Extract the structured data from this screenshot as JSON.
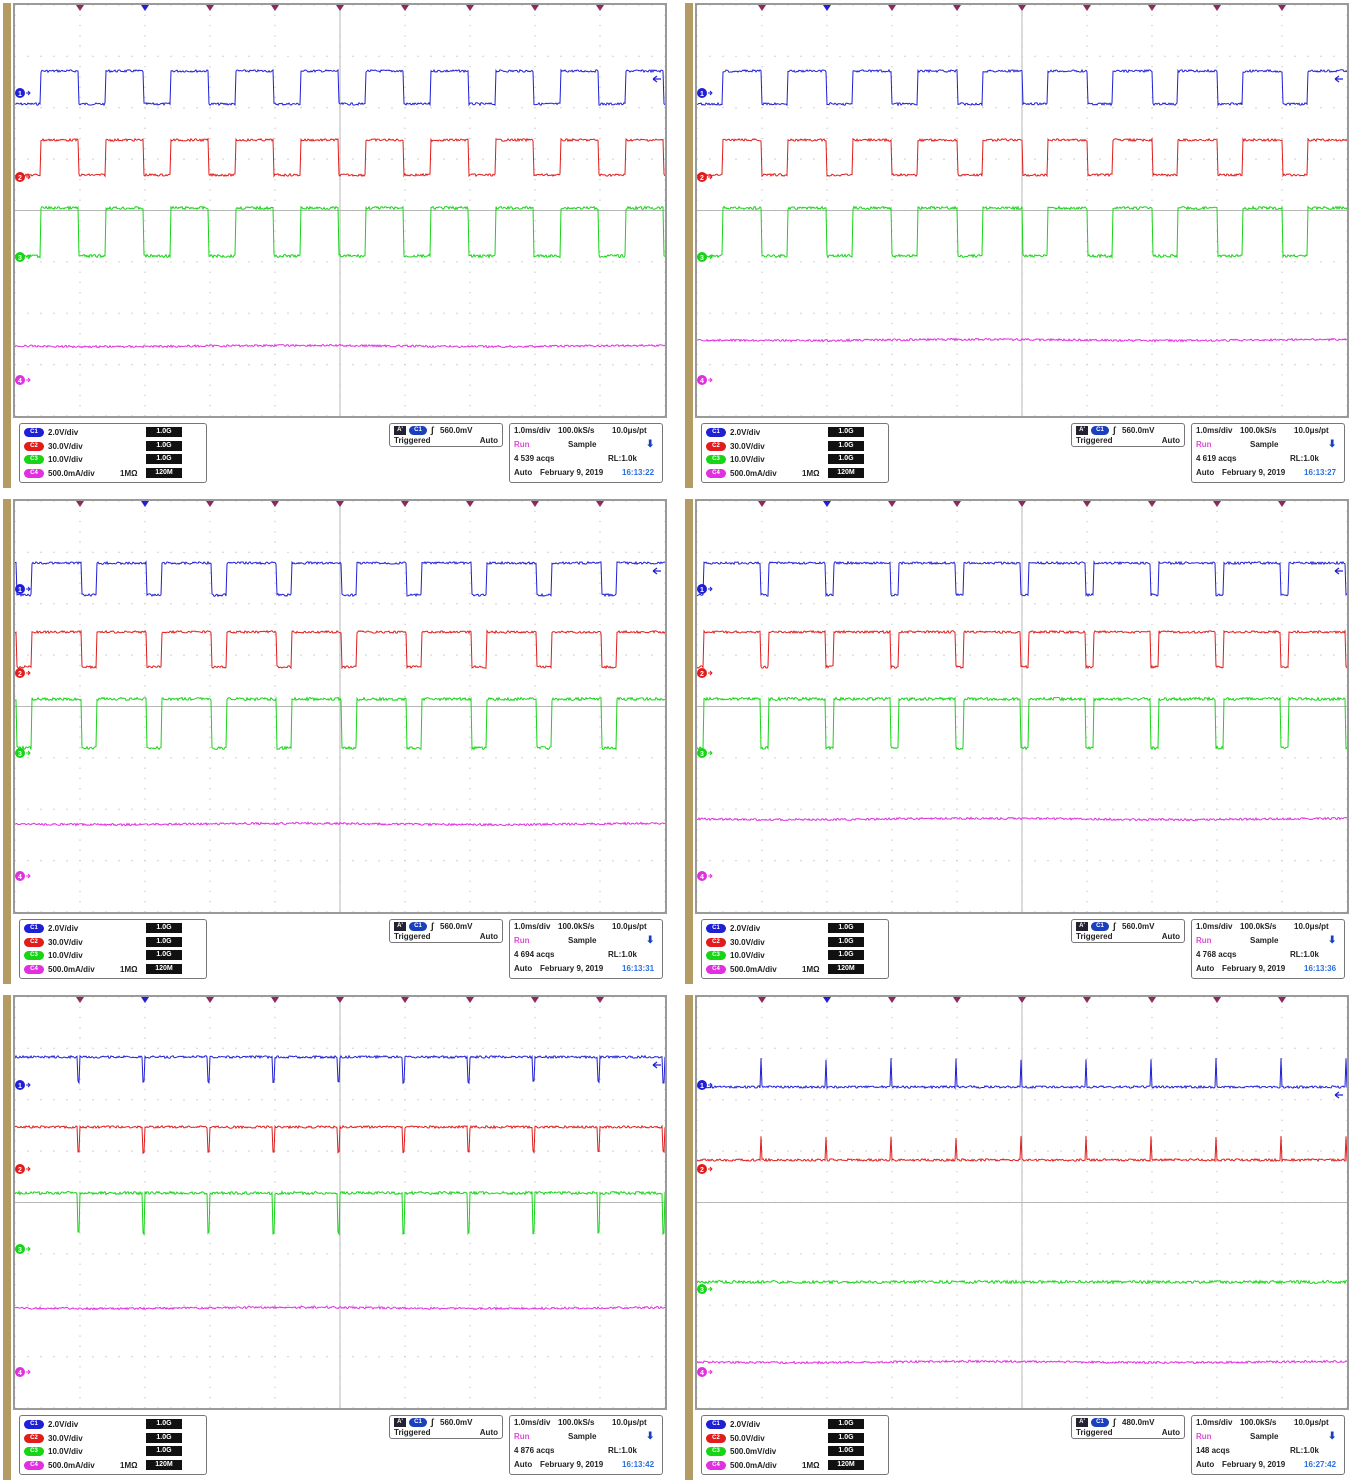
{
  "colors": {
    "c1": "#1f1fd6",
    "c2": "#e01c1c",
    "c3": "#17d417",
    "c4": "#e030e0",
    "frame": "#b49a63",
    "grid": "#c8c8c8"
  },
  "panels": [
    {
      "channels": [
        {
          "badge": "C1",
          "scale": "2.0V/div",
          "impedance": "",
          "bandwidth": "1.0G"
        },
        {
          "badge": "C2",
          "scale": "30.0V/div",
          "impedance": "",
          "bandwidth": "1.0G"
        },
        {
          "badge": "C3",
          "scale": "10.0V/div",
          "impedance": "",
          "bandwidth": "1.0G"
        },
        {
          "badge": "C4",
          "scale": "500.0mA/div",
          "impedance": "1MΩ",
          "bandwidth": "120M"
        }
      ],
      "trigger": {
        "icon": "A'",
        "channel": "C1",
        "edge": "∫",
        "level": "560.0mV",
        "status": "Triggered",
        "mode": "Auto"
      },
      "acquisition": {
        "timebase": "1.0ms/div",
        "rate": "100.0kS/s",
        "resolution": "10.0μs/pt",
        "state": "Run",
        "mode": "Sample",
        "acqs": "4 539 acqs",
        "record_length": "RL:1.0k",
        "auto": "Auto",
        "date": "February 9, 2019",
        "time": "16:13:22"
      },
      "waves": {
        "c1_hi": 66,
        "c1_lo": 99,
        "c2_hi": 135,
        "c2_lo": 170,
        "c3_hi": 203,
        "c3_lo": 251,
        "c4_lvl": 341,
        "mode": "square",
        "duty_high": 0.58,
        "start_phase": 0.6,
        "period_div": 1.0
      }
    },
    {
      "channels": [
        {
          "badge": "C1",
          "scale": "2.0V/div",
          "impedance": "",
          "bandwidth": "1.0G"
        },
        {
          "badge": "C2",
          "scale": "30.0V/div",
          "impedance": "",
          "bandwidth": "1.0G"
        },
        {
          "badge": "C3",
          "scale": "10.0V/div",
          "impedance": "",
          "bandwidth": "1.0G"
        },
        {
          "badge": "C4",
          "scale": "500.0mA/div",
          "impedance": "1MΩ",
          "bandwidth": "120M"
        }
      ],
      "trigger": {
        "icon": "A'",
        "channel": "C1",
        "edge": "∫",
        "level": "560.0mV",
        "status": "Triggered",
        "mode": "Auto"
      },
      "acquisition": {
        "timebase": "1.0ms/div",
        "rate": "100.0kS/s",
        "resolution": "10.0μs/pt",
        "state": "Run",
        "mode": "Sample",
        "acqs": "4 619 acqs",
        "record_length": "RL:1.0k",
        "auto": "Auto",
        "date": "February 9, 2019",
        "time": "16:13:27"
      },
      "waves": {
        "c1_hi": 66,
        "c1_lo": 99,
        "c2_hi": 135,
        "c2_lo": 170,
        "c3_hi": 203,
        "c3_lo": 251,
        "c4_lvl": 335,
        "mode": "square",
        "duty_high": 0.6,
        "start_phase": 0.6,
        "period_div": 1.0
      }
    },
    {
      "channels": [
        {
          "badge": "C1",
          "scale": "2.0V/div",
          "impedance": "",
          "bandwidth": "1.0G"
        },
        {
          "badge": "C2",
          "scale": "30.0V/div",
          "impedance": "",
          "bandwidth": "1.0G"
        },
        {
          "badge": "C3",
          "scale": "10.0V/div",
          "impedance": "",
          "bandwidth": "1.0G"
        },
        {
          "badge": "C4",
          "scale": "500.0mA/div",
          "impedance": "1MΩ",
          "bandwidth": "120M"
        }
      ],
      "trigger": {
        "icon": "A'",
        "channel": "C1",
        "edge": "∫",
        "level": "560.0mV",
        "status": "Triggered",
        "mode": "Auto"
      },
      "acquisition": {
        "timebase": "1.0ms/div",
        "rate": "100.0kS/s",
        "resolution": "10.0μs/pt",
        "state": "Run",
        "mode": "Sample",
        "acqs": "4 694 acqs",
        "record_length": "RL:1.0k",
        "auto": "Auto",
        "date": "February 9, 2019",
        "time": "16:13:31"
      },
      "waves": {
        "c1_hi": 62,
        "c1_lo": 94,
        "c2_hi": 131,
        "c2_lo": 166,
        "c3_hi": 198,
        "c3_lo": 247,
        "c4_lvl": 323,
        "mode": "square",
        "duty_high": 0.78,
        "start_phase": 0.75,
        "period_div": 1.0
      }
    },
    {
      "channels": [
        {
          "badge": "C1",
          "scale": "2.0V/div",
          "impedance": "",
          "bandwidth": "1.0G"
        },
        {
          "badge": "C2",
          "scale": "30.0V/div",
          "impedance": "",
          "bandwidth": "1.0G"
        },
        {
          "badge": "C3",
          "scale": "10.0V/div",
          "impedance": "",
          "bandwidth": "1.0G"
        },
        {
          "badge": "C4",
          "scale": "500.0mA/div",
          "impedance": "1MΩ",
          "bandwidth": "120M"
        }
      ],
      "trigger": {
        "icon": "A'",
        "channel": "C1",
        "edge": "∫",
        "level": "560.0mV",
        "status": "Triggered",
        "mode": "Auto"
      },
      "acquisition": {
        "timebase": "1.0ms/div",
        "rate": "100.0kS/s",
        "resolution": "10.0μs/pt",
        "state": "Run",
        "mode": "Sample",
        "acqs": "4 768 acqs",
        "record_length": "RL:1.0k",
        "auto": "Auto",
        "date": "February 9, 2019",
        "time": "16:13:36"
      },
      "waves": {
        "c1_hi": 62,
        "c1_lo": 94,
        "c2_hi": 131,
        "c2_lo": 166,
        "c3_hi": 198,
        "c3_lo": 247,
        "c4_lvl": 318,
        "mode": "square",
        "duty_high": 0.88,
        "start_phase": 0.9,
        "period_div": 1.0
      }
    },
    {
      "channels": [
        {
          "badge": "C1",
          "scale": "2.0V/div",
          "impedance": "",
          "bandwidth": "1.0G"
        },
        {
          "badge": "C2",
          "scale": "30.0V/div",
          "impedance": "",
          "bandwidth": "1.0G"
        },
        {
          "badge": "C3",
          "scale": "10.0V/div",
          "impedance": "",
          "bandwidth": "1.0G"
        },
        {
          "badge": "C4",
          "scale": "500.0mA/div",
          "impedance": "1MΩ",
          "bandwidth": "120M"
        }
      ],
      "trigger": {
        "icon": "A'",
        "channel": "C1",
        "edge": "∫",
        "level": "560.0mV",
        "status": "Triggered",
        "mode": "Auto"
      },
      "acquisition": {
        "timebase": "1.0ms/div",
        "rate": "100.0kS/s",
        "resolution": "10.0μs/pt",
        "state": "Run",
        "mode": "Sample",
        "acqs": "4 876 acqs",
        "record_length": "RL:1.0k",
        "auto": "Auto",
        "date": "February 9, 2019",
        "time": "16:13:42"
      },
      "waves": {
        "c1_hi": 60,
        "c1_lo": 85,
        "c2_hi": 130,
        "c2_lo": 155,
        "c3_hi": 196,
        "c3_lo": 236,
        "c4_lvl": 311,
        "mode": "pulse_down",
        "duty_high": 0.96,
        "start_phase": 0.0,
        "period_div": 1.0
      }
    },
    {
      "channels": [
        {
          "badge": "C1",
          "scale": "2.0V/div",
          "impedance": "",
          "bandwidth": "1.0G"
        },
        {
          "badge": "C2",
          "scale": "50.0V/div",
          "impedance": "",
          "bandwidth": "1.0G"
        },
        {
          "badge": "C3",
          "scale": "500.0mV/div",
          "impedance": "",
          "bandwidth": "1.0G"
        },
        {
          "badge": "C4",
          "scale": "500.0mA/div",
          "impedance": "1MΩ",
          "bandwidth": "120M"
        }
      ],
      "trigger": {
        "icon": "A'",
        "channel": "C1",
        "edge": "∫",
        "level": "480.0mV",
        "status": "Triggered",
        "mode": "Auto"
      },
      "acquisition": {
        "timebase": "1.0ms/div",
        "rate": "100.0kS/s",
        "resolution": "10.0μs/pt",
        "state": "Run",
        "mode": "Sample",
        "acqs": "148 acqs",
        "record_length": "RL:1.0k",
        "auto": "Auto",
        "date": "February 9, 2019",
        "time": "16:27:42"
      },
      "waves": {
        "c1_hi": 90,
        "c1_lo": 62,
        "c2_hi": 163,
        "c2_lo": 140,
        "c3_hi": 285,
        "c3_lo": 285,
        "c4_lvl": 365,
        "mode": "pulse_up",
        "duty_high": 0.97,
        "start_phase": 0.0,
        "period_div": 1.0
      }
    }
  ]
}
